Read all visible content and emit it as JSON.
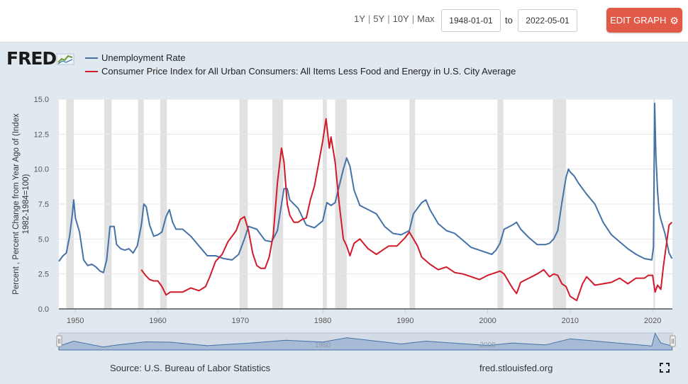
{
  "header": {
    "range_links": [
      "1Y",
      "5Y",
      "10Y",
      "Max"
    ],
    "start_date": "1948-01-01",
    "to_label": "to",
    "end_date": "2022-05-01",
    "edit_button": "EDIT GRAPH"
  },
  "branding": {
    "logo": "FRED"
  },
  "colors": {
    "unemployment": "#4572a7",
    "cpi": "#d11a2a",
    "recession": "#e1e1e1",
    "navigator_fill": "#a7bbd6"
  },
  "chart_data": {
    "type": "line",
    "title": "",
    "xlabel": "",
    "ylabel": "Percent , Percent Change from Year Ago of (Index 1982-1984=100)",
    "ylabel_lines": [
      "Percent , Percent Change from Year Ago of (Index",
      "1982-1984=100)"
    ],
    "xlim": [
      1948.0,
      2022.4
    ],
    "ylim": [
      0,
      15
    ],
    "y_ticks": [
      "0.0",
      "2.5",
      "5.0",
      "7.5",
      "10.0",
      "12.5",
      "15.0"
    ],
    "x_ticks": [
      "1950",
      "1960",
      "1970",
      "1980",
      "1990",
      "2000",
      "2010",
      "2020"
    ],
    "navigator_labels": [
      "1980",
      "2000"
    ],
    "recessions": [
      [
        1948.9,
        1949.8
      ],
      [
        1953.5,
        1954.4
      ],
      [
        1957.6,
        1958.3
      ],
      [
        1960.3,
        1961.1
      ],
      [
        1969.9,
        1970.9
      ],
      [
        1973.9,
        1975.2
      ],
      [
        1980.0,
        1980.5
      ],
      [
        1981.5,
        1982.9
      ],
      [
        1990.5,
        1991.2
      ],
      [
        2001.2,
        2001.9
      ],
      [
        2007.9,
        2009.5
      ],
      [
        2020.1,
        2020.3
      ]
    ],
    "series": [
      {
        "name": "Unemployment Rate",
        "color": "#4572a7",
        "x": [
          1948.0,
          1948.5,
          1948.9,
          1949.3,
          1949.6,
          1949.8,
          1950.0,
          1950.5,
          1951.0,
          1951.5,
          1952.0,
          1952.5,
          1953.0,
          1953.4,
          1953.8,
          1954.2,
          1954.7,
          1955.0,
          1955.5,
          1956.0,
          1956.5,
          1957.0,
          1957.5,
          1958.0,
          1958.3,
          1958.6,
          1959.0,
          1959.5,
          1960.0,
          1960.5,
          1961.0,
          1961.4,
          1961.8,
          1962.2,
          1963.0,
          1964.0,
          1965.0,
          1966.0,
          1967.0,
          1968.0,
          1969.0,
          1969.8,
          1970.5,
          1971.0,
          1972.0,
          1973.0,
          1973.8,
          1974.5,
          1975.0,
          1975.3,
          1975.7,
          1976.0,
          1977.0,
          1978.0,
          1979.0,
          1980.0,
          1980.5,
          1981.0,
          1981.5,
          1982.0,
          1982.5,
          1982.9,
          1983.3,
          1983.8,
          1984.5,
          1985.5,
          1986.5,
          1987.5,
          1988.5,
          1989.5,
          1990.5,
          1991.0,
          1991.5,
          1992.0,
          1992.5,
          1993.0,
          1994.0,
          1995.0,
          1996.0,
          1997.0,
          1998.0,
          1999.0,
          2000.0,
          2000.5,
          2001.0,
          2001.5,
          2002.0,
          2003.0,
          2003.5,
          2004.0,
          2005.0,
          2006.0,
          2007.0,
          2007.5,
          2008.0,
          2008.5,
          2009.0,
          2009.5,
          2009.8,
          2010.0,
          2010.5,
          2011.0,
          2012.0,
          2013.0,
          2014.0,
          2015.0,
          2016.0,
          2017.0,
          2018.0,
          2019.0,
          2019.9,
          2020.1,
          2020.25,
          2020.4,
          2020.6,
          2020.8,
          2021.0,
          2021.5,
          2022.0,
          2022.35
        ],
        "values": [
          3.4,
          3.8,
          4.0,
          5.2,
          6.6,
          7.8,
          6.5,
          5.5,
          3.5,
          3.1,
          3.2,
          3.0,
          2.7,
          2.6,
          3.5,
          5.9,
          5.9,
          4.6,
          4.3,
          4.2,
          4.3,
          4.0,
          4.5,
          6.0,
          7.5,
          7.3,
          6.0,
          5.2,
          5.3,
          5.5,
          6.6,
          7.1,
          6.2,
          5.7,
          5.7,
          5.2,
          4.5,
          3.8,
          3.8,
          3.6,
          3.5,
          3.9,
          5.0,
          5.9,
          5.7,
          4.9,
          4.8,
          5.6,
          7.5,
          8.6,
          8.6,
          7.8,
          7.2,
          6.0,
          5.8,
          6.3,
          7.6,
          7.4,
          7.6,
          8.8,
          10.0,
          10.8,
          10.2,
          8.5,
          7.4,
          7.1,
          6.8,
          5.9,
          5.4,
          5.3,
          5.6,
          6.8,
          7.2,
          7.6,
          7.8,
          7.1,
          6.1,
          5.6,
          5.4,
          4.9,
          4.4,
          4.2,
          4.0,
          3.9,
          4.2,
          4.7,
          5.7,
          6.0,
          6.2,
          5.7,
          5.1,
          4.6,
          4.6,
          4.7,
          5.0,
          5.6,
          7.6,
          9.4,
          10.0,
          9.8,
          9.5,
          9.0,
          8.2,
          7.5,
          6.2,
          5.3,
          4.8,
          4.3,
          3.9,
          3.6,
          3.5,
          4.4,
          14.7,
          11.0,
          8.4,
          6.9,
          6.4,
          5.4,
          4.0,
          3.6
        ]
      },
      {
        "name": "Consumer Price Index for All Urban Consumers: All Items Less Food and Energy in U.S. City Average",
        "color": "#d11a2a",
        "x": [
          1958.0,
          1958.5,
          1959.0,
          1959.5,
          1960.0,
          1960.5,
          1961.0,
          1961.5,
          1962.0,
          1963.0,
          1964.0,
          1965.0,
          1965.8,
          1966.3,
          1967.0,
          1967.8,
          1968.5,
          1969.5,
          1970.0,
          1970.5,
          1971.0,
          1971.5,
          1972.0,
          1972.5,
          1973.0,
          1973.5,
          1974.0,
          1974.5,
          1975.0,
          1975.3,
          1975.7,
          1976.0,
          1976.5,
          1977.0,
          1977.5,
          1978.0,
          1978.5,
          1979.0,
          1979.5,
          1980.0,
          1980.4,
          1980.8,
          1981.0,
          1981.5,
          1982.0,
          1982.5,
          1982.9,
          1983.3,
          1983.8,
          1984.5,
          1985.5,
          1986.5,
          1987.0,
          1988.0,
          1989.0,
          1990.0,
          1990.5,
          1991.0,
          1991.5,
          1992.0,
          1993.0,
          1994.0,
          1995.0,
          1996.0,
          1997.0,
          1998.0,
          1999.0,
          2000.0,
          2001.0,
          2001.5,
          2002.0,
          2003.0,
          2003.5,
          2004.0,
          2005.0,
          2006.0,
          2006.8,
          2007.5,
          2008.0,
          2008.5,
          2009.0,
          2009.5,
          2010.0,
          2010.8,
          2011.5,
          2012.0,
          2013.0,
          2014.0,
          2015.0,
          2016.0,
          2017.0,
          2018.0,
          2019.0,
          2019.5,
          2020.0,
          2020.3,
          2020.6,
          2021.0,
          2021.3,
          2021.6,
          2022.0,
          2022.35
        ],
        "values": [
          2.8,
          2.4,
          2.1,
          2.0,
          2.0,
          1.6,
          1.0,
          1.2,
          1.2,
          1.2,
          1.5,
          1.3,
          1.6,
          2.3,
          3.4,
          3.9,
          4.8,
          5.6,
          6.4,
          6.6,
          5.6,
          4.0,
          3.1,
          2.9,
          2.9,
          3.7,
          5.3,
          9.0,
          11.5,
          10.5,
          7.5,
          6.7,
          6.2,
          6.2,
          6.4,
          6.5,
          7.8,
          8.8,
          10.4,
          12.0,
          13.6,
          11.5,
          12.3,
          10.5,
          7.5,
          5.0,
          4.5,
          3.8,
          4.7,
          5.0,
          4.3,
          3.9,
          4.1,
          4.5,
          4.5,
          5.1,
          5.5,
          5.0,
          4.5,
          3.7,
          3.2,
          2.8,
          3.0,
          2.6,
          2.5,
          2.3,
          2.1,
          2.4,
          2.6,
          2.7,
          2.5,
          1.5,
          1.1,
          1.9,
          2.2,
          2.5,
          2.8,
          2.3,
          2.5,
          2.4,
          1.8,
          1.6,
          0.9,
          0.6,
          1.8,
          2.3,
          1.7,
          1.8,
          1.9,
          2.2,
          1.8,
          2.2,
          2.2,
          2.4,
          2.4,
          1.2,
          1.7,
          1.4,
          3.0,
          4.3,
          6.0,
          6.2
        ]
      }
    ],
    "navigator": {
      "x": [
        1948.0,
        1949.8,
        1953.4,
        1955.0,
        1958.5,
        1961.5,
        1966.0,
        1971.0,
        1975.5,
        1980.0,
        1982.9,
        1989.5,
        1992.5,
        2000.0,
        2003.0,
        2007.0,
        2010.0,
        2019.9,
        2020.3,
        2021.0,
        2022.35
      ],
      "values": [
        3.4,
        7.8,
        2.6,
        4.4,
        7.2,
        6.9,
        3.8,
        6.0,
        8.6,
        7.0,
        10.8,
        5.3,
        7.8,
        4.0,
        6.2,
        4.5,
        9.9,
        3.5,
        14.7,
        6.2,
        3.6
      ]
    }
  },
  "footer": {
    "source": "Source: U.S. Bureau of Labor Statistics",
    "url": "fred.stlouisfed.org"
  }
}
